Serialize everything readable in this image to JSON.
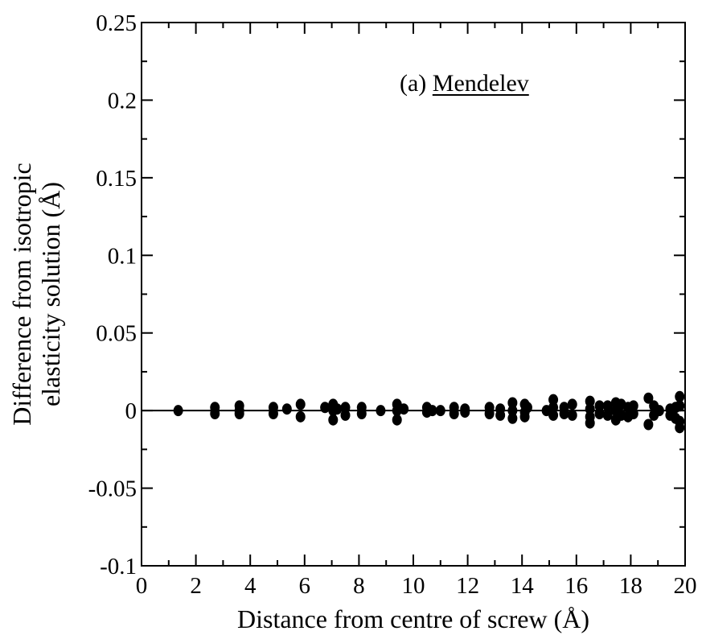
{
  "chart_data": {
    "type": "scatter",
    "xlabel": "Distance from centre of screw (Å)",
    "ylabel": [
      "Difference from isotropic",
      "elasticity solution (Å)"
    ],
    "xlim": [
      0,
      20
    ],
    "ylim": [
      -0.1,
      0.25
    ],
    "x_ticks": [
      0,
      2,
      4,
      6,
      8,
      10,
      12,
      14,
      16,
      18,
      20
    ],
    "x_tick_labels": [
      "0",
      "2",
      "4",
      "6",
      "8",
      "10",
      "12",
      "14",
      "16",
      "18",
      "20"
    ],
    "y_ticks": [
      -0.1,
      -0.05,
      0,
      0.05,
      0.1,
      0.15,
      0.2,
      0.25
    ],
    "y_tick_labels": [
      "-0.1",
      "-0.05",
      "0",
      "0.05",
      "0.1",
      "0.15",
      "0.2",
      "0.25"
    ],
    "annotation": {
      "prefix": "(a) ",
      "name": "Mendelev",
      "underlined": true
    },
    "reference_line": {
      "y": 0
    },
    "grid": false,
    "marker_color": "#000000",
    "points": [
      [
        1.35,
        0.0
      ],
      [
        2.7,
        0.002
      ],
      [
        2.7,
        -0.002
      ],
      [
        3.6,
        0.003
      ],
      [
        3.6,
        0.0
      ],
      [
        3.6,
        -0.002
      ],
      [
        4.85,
        0.002
      ],
      [
        4.85,
        -0.002
      ],
      [
        5.35,
        0.001
      ],
      [
        5.85,
        0.004
      ],
      [
        5.85,
        -0.004
      ],
      [
        6.75,
        0.002
      ],
      [
        7.05,
        0.004
      ],
      [
        7.05,
        0.0
      ],
      [
        7.05,
        -0.006
      ],
      [
        7.2,
        0.001
      ],
      [
        7.5,
        0.002
      ],
      [
        7.5,
        -0.003
      ],
      [
        8.1,
        0.002
      ],
      [
        8.1,
        -0.002
      ],
      [
        8.8,
        0.0
      ],
      [
        9.4,
        0.004
      ],
      [
        9.4,
        0.0
      ],
      [
        9.4,
        -0.006
      ],
      [
        9.65,
        0.001
      ],
      [
        10.5,
        0.002
      ],
      [
        10.5,
        -0.001
      ],
      [
        10.7,
        0.0
      ],
      [
        11.0,
        0.0
      ],
      [
        11.5,
        0.002
      ],
      [
        11.5,
        -0.002
      ],
      [
        11.9,
        0.001
      ],
      [
        11.9,
        -0.001
      ],
      [
        12.8,
        0.002
      ],
      [
        12.8,
        -0.002
      ],
      [
        13.2,
        0.001
      ],
      [
        13.2,
        -0.003
      ],
      [
        13.65,
        0.005
      ],
      [
        13.65,
        0.0
      ],
      [
        13.65,
        -0.005
      ],
      [
        14.1,
        0.004
      ],
      [
        14.1,
        -0.001
      ],
      [
        14.1,
        -0.004
      ],
      [
        14.2,
        0.002
      ],
      [
        14.9,
        0.0
      ],
      [
        15.15,
        0.007
      ],
      [
        15.15,
        0.002
      ],
      [
        15.15,
        -0.003
      ],
      [
        15.55,
        0.002
      ],
      [
        15.55,
        -0.002
      ],
      [
        15.85,
        0.004
      ],
      [
        15.85,
        -0.003
      ],
      [
        16.5,
        0.006
      ],
      [
        16.5,
        0.001
      ],
      [
        16.5,
        -0.004
      ],
      [
        16.5,
        -0.008
      ],
      [
        16.85,
        0.003
      ],
      [
        16.85,
        -0.002
      ],
      [
        17.15,
        0.003
      ],
      [
        17.15,
        -0.003
      ],
      [
        17.45,
        0.005
      ],
      [
        17.45,
        0.0
      ],
      [
        17.45,
        -0.006
      ],
      [
        17.65,
        0.004
      ],
      [
        17.65,
        -0.003
      ],
      [
        17.9,
        0.002
      ],
      [
        17.9,
        -0.004
      ],
      [
        18.1,
        0.003
      ],
      [
        18.1,
        -0.002
      ],
      [
        18.65,
        0.008
      ],
      [
        18.65,
        -0.009
      ],
      [
        18.85,
        0.003
      ],
      [
        18.85,
        -0.003
      ],
      [
        19.05,
        0.0
      ],
      [
        19.45,
        0.001
      ],
      [
        19.45,
        -0.003
      ],
      [
        19.65,
        0.002
      ],
      [
        19.65,
        -0.005
      ],
      [
        19.8,
        0.009
      ],
      [
        19.8,
        0.003
      ],
      [
        19.8,
        -0.007
      ],
      [
        19.8,
        -0.011
      ]
    ]
  }
}
